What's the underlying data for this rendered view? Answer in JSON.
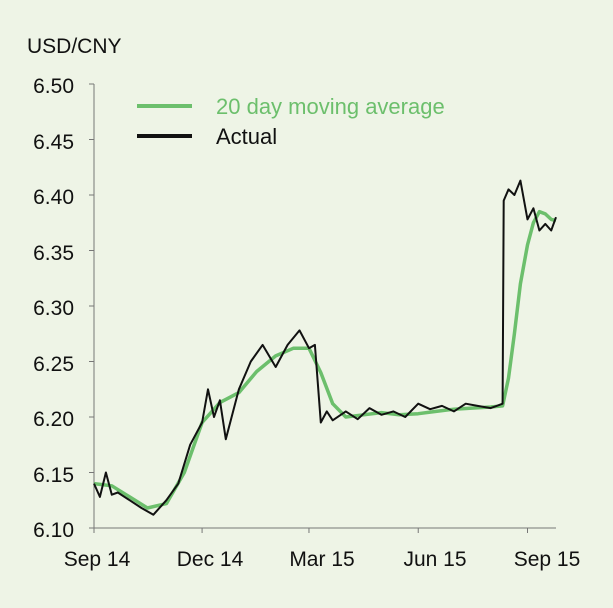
{
  "chart_data": {
    "type": "line",
    "unit_label": "USD/CNY",
    "ylim": [
      6.1,
      6.5
    ],
    "y_ticks": [
      "6.10",
      "6.15",
      "6.20",
      "6.25",
      "6.30",
      "6.35",
      "6.40",
      "6.45",
      "6.50"
    ],
    "x_ticks": [
      "Sep 14",
      "Dec 14",
      "Mar 15",
      "Jun 15",
      "Sep 15"
    ],
    "grid": false,
    "legend_position": "top-left",
    "series": [
      {
        "name": "20 day moving average",
        "color": "#6cbf6c",
        "x": [
          "2014-09-01",
          "2014-09-16",
          "2014-10-01",
          "2014-10-16",
          "2014-11-01",
          "2014-11-16",
          "2014-12-01",
          "2014-12-16",
          "2015-01-01",
          "2015-01-16",
          "2015-02-01",
          "2015-02-16",
          "2015-03-01",
          "2015-03-11",
          "2015-03-21",
          "2015-04-01",
          "2015-04-16",
          "2015-05-01",
          "2015-05-16",
          "2015-06-01",
          "2015-06-16",
          "2015-07-01",
          "2015-07-16",
          "2015-08-01",
          "2015-08-11",
          "2015-08-16",
          "2015-08-21",
          "2015-08-26",
          "2015-09-01",
          "2015-09-06",
          "2015-09-11",
          "2015-09-16",
          "2015-09-21",
          "2015-09-25"
        ],
        "values": [
          6.14,
          6.138,
          6.128,
          6.118,
          6.122,
          6.15,
          6.195,
          6.213,
          6.222,
          6.241,
          6.255,
          6.262,
          6.262,
          6.24,
          6.212,
          6.2,
          6.202,
          6.204,
          6.202,
          6.203,
          6.205,
          6.207,
          6.208,
          6.209,
          6.21,
          6.235,
          6.275,
          6.32,
          6.355,
          6.375,
          6.385,
          6.383,
          6.378,
          6.377
        ]
      },
      {
        "name": "Actual",
        "color": "#111111",
        "x": [
          "2014-09-01",
          "2014-09-06",
          "2014-09-11",
          "2014-09-16",
          "2014-09-21",
          "2014-10-01",
          "2014-10-11",
          "2014-10-21",
          "2014-11-01",
          "2014-11-11",
          "2014-11-21",
          "2014-12-01",
          "2014-12-06",
          "2014-12-11",
          "2014-12-16",
          "2014-12-21",
          "2015-01-01",
          "2015-01-11",
          "2015-01-21",
          "2015-02-01",
          "2015-02-11",
          "2015-02-21",
          "2015-03-01",
          "2015-03-06",
          "2015-03-11",
          "2015-03-16",
          "2015-03-21",
          "2015-04-01",
          "2015-04-11",
          "2015-04-21",
          "2015-05-01",
          "2015-05-11",
          "2015-05-21",
          "2015-06-01",
          "2015-06-11",
          "2015-06-21",
          "2015-07-01",
          "2015-07-11",
          "2015-07-21",
          "2015-08-01",
          "2015-08-06",
          "2015-08-11",
          "2015-08-12",
          "2015-08-16",
          "2015-08-21",
          "2015-08-26",
          "2015-09-01",
          "2015-09-06",
          "2015-09-11",
          "2015-09-16",
          "2015-09-21",
          "2015-09-25"
        ],
        "values": [
          6.14,
          6.128,
          6.15,
          6.13,
          6.132,
          6.125,
          6.118,
          6.112,
          6.125,
          6.14,
          6.175,
          6.195,
          6.225,
          6.2,
          6.215,
          6.18,
          6.225,
          6.25,
          6.265,
          6.245,
          6.265,
          6.278,
          6.262,
          6.265,
          6.195,
          6.205,
          6.197,
          6.205,
          6.198,
          6.208,
          6.202,
          6.205,
          6.2,
          6.212,
          6.207,
          6.21,
          6.205,
          6.212,
          6.21,
          6.208,
          6.21,
          6.212,
          6.395,
          6.405,
          6.4,
          6.413,
          6.378,
          6.388,
          6.368,
          6.374,
          6.368,
          6.38
        ]
      }
    ]
  }
}
